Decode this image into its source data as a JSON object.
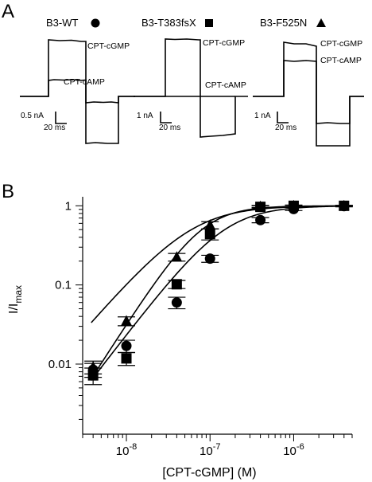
{
  "panel_a": {
    "letter": "A",
    "traces": [
      {
        "title": "B3-WT",
        "marker": "circle",
        "label_cgmp": "CPT-cGMP",
        "label_camp": "CPT-cAMP",
        "scale_current": "0.5 nA",
        "scale_time": "20 ms"
      },
      {
        "title": "B3-T383fsX",
        "marker": "square",
        "label_cgmp": "CPT-cGMP",
        "label_camp": "CPT-cAMP",
        "scale_current": "1 nA",
        "scale_time": "20 ms"
      },
      {
        "title": "B3-F525N",
        "marker": "triangle",
        "label_cgmp": "CPT-cGMP",
        "label_camp": "CPT-cAMP",
        "scale_current": "1 nA",
        "scale_time": "20 ms"
      }
    ]
  },
  "panel_b": {
    "letter": "B"
  },
  "chart_data": {
    "type": "scatter",
    "xlabel": "[CPT-cGMP] (M)",
    "ylabel": "I/I",
    "ylabel_subscript": "max",
    "xscale": "log",
    "yscale": "log",
    "xlim": [
      3e-09,
      5e-06
    ],
    "ylim": [
      0.0013,
      1.3
    ],
    "x_ticks": [
      {
        "value": 1e-08,
        "base": "10",
        "exp": "-8"
      },
      {
        "value": 1e-07,
        "base": "10",
        "exp": "-7"
      },
      {
        "value": 1e-06,
        "base": "10",
        "exp": "-6"
      }
    ],
    "y_ticks": [
      {
        "value": 0.01,
        "label": "0.01"
      },
      {
        "value": 0.1,
        "label": "0.1"
      },
      {
        "value": 1,
        "label": "1"
      }
    ],
    "grid": false,
    "series": [
      {
        "marker": "circle",
        "points": [
          {
            "x": 4e-09,
            "y": 0.0085,
            "err": 0.0017
          },
          {
            "x": 1e-08,
            "y": 0.017,
            "err": 0.003
          },
          {
            "x": 4e-08,
            "y": 0.06,
            "err": 0.01
          },
          {
            "x": 1e-07,
            "y": 0.215,
            "err": 0.022
          },
          {
            "x": 4e-07,
            "y": 0.66,
            "err": 0.05
          },
          {
            "x": 1e-06,
            "y": 0.91,
            "err": 0.04
          },
          {
            "x": 4e-06,
            "y": 0.99,
            "err": 0.02
          }
        ],
        "fit": {
          "ec50": 1.5e-07,
          "hill": 1.38
        }
      },
      {
        "marker": "square",
        "points": [
          {
            "x": 4e-09,
            "y": 0.0072,
            "err": 0.0017
          },
          {
            "x": 1e-08,
            "y": 0.0118,
            "err": 0.0022
          },
          {
            "x": 4e-08,
            "y": 0.102,
            "err": 0.012
          },
          {
            "x": 1e-07,
            "y": 0.44,
            "err": 0.07
          },
          {
            "x": 4e-07,
            "y": 0.97,
            "err": 0.03
          },
          {
            "x": 1e-06,
            "y": 1.0,
            "err": 0.02
          },
          {
            "x": 4e-06,
            "y": 1.0,
            "err": 0.01
          }
        ],
        "fit": {
          "ec50": 8e-08,
          "hill": 1.65
        }
      },
      {
        "marker": "triangle",
        "points": [
          {
            "x": 4e-09,
            "y": 0.0092,
            "err": 0.0017
          },
          {
            "x": 1e-08,
            "y": 0.035,
            "err": 0.0045
          },
          {
            "x": 4e-08,
            "y": 0.225,
            "err": 0.025
          },
          {
            "x": 1e-07,
            "y": 0.57,
            "err": 0.06
          },
          {
            "x": 4e-07,
            "y": 0.98,
            "err": 0.03
          },
          {
            "x": 1e-06,
            "y": 1.0,
            "err": 0.02
          },
          {
            "x": 4e-06,
            "y": 1.0,
            "err": 0.01
          }
        ],
        "fit": {
          "ec50": 6e-08,
          "hill": 1.22
        }
      }
    ]
  }
}
